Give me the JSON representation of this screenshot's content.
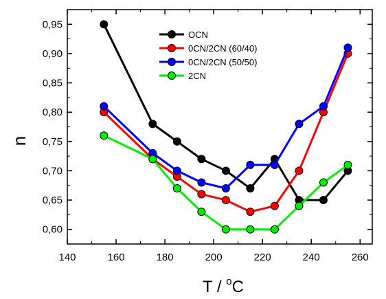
{
  "chart_data": {
    "type": "line",
    "xlabel": "T / °C",
    "ylabel": "n",
    "xlim": [
      140,
      265
    ],
    "ylim": [
      0.575,
      0.975
    ],
    "xticks": [
      140,
      160,
      180,
      200,
      220,
      240,
      260
    ],
    "xtick_labels": [
      "140",
      "160",
      "180",
      "200",
      "220",
      "240",
      "260"
    ],
    "yticks": [
      0.6,
      0.65,
      0.7,
      0.75,
      0.8,
      0.85,
      0.9,
      0.95
    ],
    "ytick_labels": [
      "0,60",
      "0,65",
      "0,70",
      "0,75",
      "0,80",
      "0,85",
      "0,90",
      "0,95"
    ],
    "grid": false,
    "legend_position": "top-center",
    "series": [
      {
        "name": "OCN",
        "color": "#000000",
        "x": [
          155,
          175,
          185,
          195,
          205,
          215,
          225,
          235,
          245,
          255
        ],
        "y": [
          0.95,
          0.78,
          0.75,
          0.72,
          0.7,
          0.67,
          0.72,
          0.65,
          0.65,
          0.7
        ]
      },
      {
        "name": "0CN/2CN (60/40)",
        "color": "#ff0000",
        "x": [
          155,
          175,
          185,
          195,
          205,
          215,
          225,
          235,
          245,
          255
        ],
        "y": [
          0.8,
          0.72,
          0.69,
          0.66,
          0.65,
          0.63,
          0.64,
          0.7,
          0.8,
          0.9
        ]
      },
      {
        "name": "0CN/2CN (50/50)",
        "color": "#0000ff",
        "x": [
          155,
          175,
          185,
          195,
          205,
          215,
          225,
          235,
          245,
          255
        ],
        "y": [
          0.81,
          0.73,
          0.7,
          0.68,
          0.67,
          0.71,
          0.71,
          0.78,
          0.81,
          0.91
        ]
      },
      {
        "name": "2CN",
        "color": "#00ee00",
        "x": [
          155,
          175,
          185,
          195,
          205,
          215,
          225,
          235,
          245,
          255
        ],
        "y": [
          0.76,
          0.72,
          0.67,
          0.63,
          0.6,
          0.6,
          0.6,
          0.64,
          0.68,
          0.71
        ]
      }
    ]
  }
}
